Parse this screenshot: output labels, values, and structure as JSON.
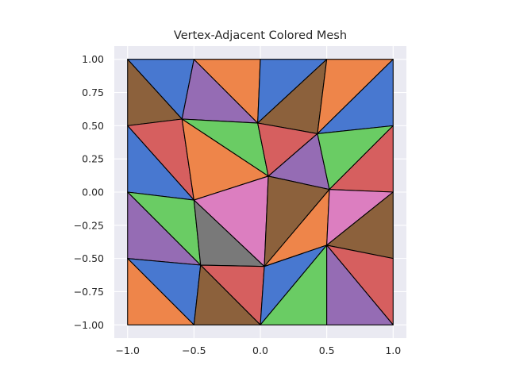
{
  "chart_data": {
    "type": "other",
    "title": "Vertex-Adjacent Colored Mesh",
    "xlabel": "",
    "ylabel": "",
    "xlim": [
      -1.1,
      1.1
    ],
    "ylim": [
      -1.1,
      1.1
    ],
    "xticks": [
      -1.0,
      -0.5,
      0.0,
      0.5,
      1.0
    ],
    "yticks": [
      -1.0,
      -0.75,
      -0.5,
      -0.25,
      0.0,
      0.25,
      0.5,
      0.75,
      1.0
    ],
    "xtick_labels": [
      "−1.0",
      "−0.5",
      "0.0",
      "0.5",
      "1.0"
    ],
    "ytick_labels": [
      "−1.00",
      "−0.75",
      "−0.50",
      "−0.25",
      "0.00",
      "0.25",
      "0.50",
      "0.75",
      "1.00"
    ],
    "grid": true,
    "background_color": "#eaeaf2",
    "edge_color": "#000000",
    "palette": {
      "blue": "#4878d0",
      "orange": "#ee854a",
      "green": "#6acc64",
      "red": "#d65f5f",
      "purple": "#956cb4",
      "brown": "#8c613c",
      "pink": "#dc7ec0",
      "gray": "#797979"
    },
    "vertices": [
      [
        -1.0,
        1.0
      ],
      [
        -0.5,
        1.0
      ],
      [
        0.0,
        1.0
      ],
      [
        0.5,
        1.0
      ],
      [
        1.0,
        1.0
      ],
      [
        -1.0,
        0.5
      ],
      [
        -0.59,
        0.55
      ],
      [
        -0.02,
        0.52
      ],
      [
        0.43,
        0.44
      ],
      [
        1.0,
        0.5
      ],
      [
        0.06,
        0.12
      ],
      [
        0.52,
        0.02
      ],
      [
        -1.0,
        0.0
      ],
      [
        -0.5,
        -0.06
      ],
      [
        1.0,
        0.0
      ],
      [
        0.03,
        -0.56
      ],
      [
        0.5,
        -0.4
      ],
      [
        -1.0,
        -0.5
      ],
      [
        -0.45,
        -0.55
      ],
      [
        1.0,
        -0.5
      ],
      [
        -1.0,
        -1.0
      ],
      [
        -0.5,
        -1.0
      ],
      [
        0.0,
        -1.0
      ],
      [
        0.5,
        -1.0
      ],
      [
        1.0,
        -1.0
      ]
    ],
    "triangles": [
      {
        "v": [
          0,
          1,
          6
        ],
        "color": "blue"
      },
      {
        "v": [
          0,
          6,
          5
        ],
        "color": "brown"
      },
      {
        "v": [
          1,
          7,
          6
        ],
        "color": "purple"
      },
      {
        "v": [
          1,
          2,
          7
        ],
        "color": "orange"
      },
      {
        "v": [
          2,
          3,
          7
        ],
        "color": "blue"
      },
      {
        "v": [
          3,
          8,
          7
        ],
        "color": "brown"
      },
      {
        "v": [
          3,
          4,
          8
        ],
        "color": "orange"
      },
      {
        "v": [
          4,
          9,
          8
        ],
        "color": "blue"
      },
      {
        "v": [
          5,
          6,
          13
        ],
        "color": "red"
      },
      {
        "v": [
          5,
          13,
          12
        ],
        "color": "blue"
      },
      {
        "v": [
          6,
          7,
          10
        ],
        "color": "green"
      },
      {
        "v": [
          6,
          10,
          13
        ],
        "color": "orange"
      },
      {
        "v": [
          7,
          8,
          10
        ],
        "color": "red"
      },
      {
        "v": [
          8,
          11,
          10
        ],
        "color": "purple"
      },
      {
        "v": [
          8,
          9,
          11
        ],
        "color": "green"
      },
      {
        "v": [
          9,
          14,
          11
        ],
        "color": "red"
      },
      {
        "v": [
          13,
          10,
          15
        ],
        "color": "pink"
      },
      {
        "v": [
          10,
          11,
          15
        ],
        "color": "brown"
      },
      {
        "v": [
          11,
          16,
          15
        ],
        "color": "orange"
      },
      {
        "v": [
          11,
          14,
          16
        ],
        "color": "pink"
      },
      {
        "v": [
          14,
          19,
          16
        ],
        "color": "brown"
      },
      {
        "v": [
          12,
          13,
          18
        ],
        "color": "green"
      },
      {
        "v": [
          12,
          18,
          17
        ],
        "color": "purple"
      },
      {
        "v": [
          13,
          15,
          18
        ],
        "color": "gray"
      },
      {
        "v": [
          17,
          18,
          21
        ],
        "color": "blue"
      },
      {
        "v": [
          17,
          21,
          20
        ],
        "color": "orange"
      },
      {
        "v": [
          18,
          15,
          22
        ],
        "color": "red"
      },
      {
        "v": [
          18,
          22,
          21
        ],
        "color": "brown"
      },
      {
        "v": [
          15,
          16,
          22
        ],
        "color": "blue"
      },
      {
        "v": [
          16,
          23,
          22
        ],
        "color": "green"
      },
      {
        "v": [
          16,
          19,
          24
        ],
        "color": "red"
      },
      {
        "v": [
          16,
          24,
          23
        ],
        "color": "purple"
      }
    ]
  }
}
